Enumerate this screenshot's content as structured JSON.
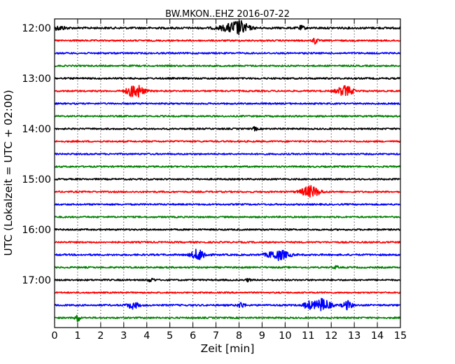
{
  "chart_data": {
    "type": "line",
    "title": "BW.MKON..EHZ 2016-07-22",
    "xlabel": "Zeit  [min]",
    "ylabel": "UTC (Lokalzeit = UTC + 02:00)",
    "xlim": [
      0,
      15
    ],
    "x_ticks": [
      "0",
      "1",
      "2",
      "3",
      "4",
      "5",
      "6",
      "7",
      "8",
      "9",
      "10",
      "11",
      "12",
      "13",
      "14",
      "15"
    ],
    "y_tick_labels": [
      "12:00",
      "13:00",
      "14:00",
      "15:00",
      "16:00",
      "17:00"
    ],
    "grid": true,
    "trace_interval_min": 15,
    "trace_colors": [
      "#000000",
      "#ff0000",
      "#0000ff",
      "#008000"
    ],
    "traces": [
      {
        "start": "12:00",
        "color": "#000000",
        "noise": 1.4,
        "events": [
          [
            0.2,
            2.5,
            0.3
          ],
          [
            7.5,
            3.0,
            0.5
          ],
          [
            8.0,
            9.0,
            0.4
          ],
          [
            10.7,
            2.5,
            0.15
          ]
        ]
      },
      {
        "start": "12:15",
        "color": "#ff0000",
        "noise": 1.1,
        "events": [
          [
            11.3,
            5.0,
            0.1
          ]
        ]
      },
      {
        "start": "12:30",
        "color": "#0000ff",
        "noise": 1.1,
        "events": []
      },
      {
        "start": "12:45",
        "color": "#008000",
        "noise": 1.1,
        "events": []
      },
      {
        "start": "13:00",
        "color": "#000000",
        "noise": 1.2,
        "events": []
      },
      {
        "start": "13:15",
        "color": "#ff0000",
        "noise": 1.1,
        "events": [
          [
            3.5,
            10.0,
            0.35
          ],
          [
            12.6,
            7.0,
            0.35
          ]
        ]
      },
      {
        "start": "13:30",
        "color": "#0000ff",
        "noise": 1.1,
        "events": []
      },
      {
        "start": "13:45",
        "color": "#008000",
        "noise": 1.1,
        "events": []
      },
      {
        "start": "14:00",
        "color": "#000000",
        "noise": 1.1,
        "events": [
          [
            8.7,
            2.5,
            0.1
          ]
        ]
      },
      {
        "start": "14:15",
        "color": "#ff0000",
        "noise": 1.1,
        "events": []
      },
      {
        "start": "14:30",
        "color": "#0000ff",
        "noise": 1.1,
        "events": []
      },
      {
        "start": "14:45",
        "color": "#008000",
        "noise": 1.1,
        "events": []
      },
      {
        "start": "15:00",
        "color": "#000000",
        "noise": 1.1,
        "events": []
      },
      {
        "start": "15:15",
        "color": "#ff0000",
        "noise": 1.1,
        "events": [
          [
            11.1,
            8.0,
            0.4
          ]
        ]
      },
      {
        "start": "15:30",
        "color": "#0000ff",
        "noise": 1.1,
        "events": []
      },
      {
        "start": "15:45",
        "color": "#008000",
        "noise": 1.1,
        "events": []
      },
      {
        "start": "16:00",
        "color": "#000000",
        "noise": 1.1,
        "events": []
      },
      {
        "start": "16:15",
        "color": "#ff0000",
        "noise": 1.1,
        "events": []
      },
      {
        "start": "16:30",
        "color": "#0000ff",
        "noise": 1.2,
        "events": [
          [
            6.25,
            8.0,
            0.3
          ],
          [
            9.7,
            7.0,
            0.45
          ]
        ]
      },
      {
        "start": "16:45",
        "color": "#008000",
        "noise": 1.1,
        "events": [
          [
            12.2,
            2.0,
            0.1
          ]
        ]
      },
      {
        "start": "17:00",
        "color": "#000000",
        "noise": 1.1,
        "events": [
          [
            4.2,
            2.5,
            0.15
          ],
          [
            8.4,
            2.0,
            0.1
          ]
        ]
      },
      {
        "start": "17:15",
        "color": "#ff0000",
        "noise": 1.0,
        "events": []
      },
      {
        "start": "17:30",
        "color": "#0000ff",
        "noise": 1.2,
        "events": [
          [
            3.4,
            4.5,
            0.25
          ],
          [
            8.1,
            4.0,
            0.15
          ],
          [
            11.0,
            5.0,
            0.2
          ],
          [
            11.6,
            9.0,
            0.35
          ],
          [
            12.7,
            6.0,
            0.2
          ]
        ]
      },
      {
        "start": "17:45",
        "color": "#008000",
        "noise": 1.1,
        "events": [
          [
            1.0,
            6.0,
            0.1
          ]
        ]
      }
    ]
  }
}
